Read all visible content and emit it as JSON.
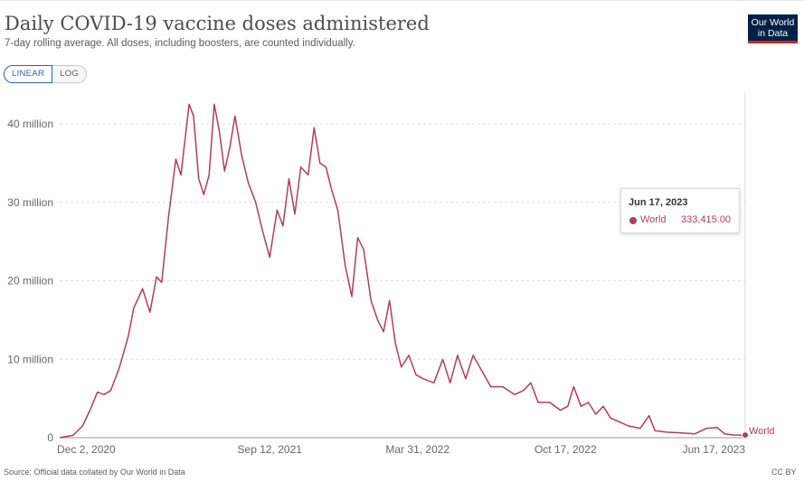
{
  "header": {
    "title": "Daily COVID-19 vaccine doses administered",
    "subtitle": "7-day rolling average. All doses, including boosters, are counted individually."
  },
  "logo": {
    "line1": "Our World",
    "line2": "in Data"
  },
  "scale_toggle": {
    "linear_label": "LINEAR",
    "log_label": "LOG",
    "selected": "LINEAR"
  },
  "tooltip": {
    "date": "Jun 17, 2023",
    "series_name": "World",
    "value": "333,415.00"
  },
  "footer": {
    "source": "Source: Official data collated by Our World in Data",
    "license": "CC BY"
  },
  "colors": {
    "series": "#b13d5a",
    "logo_bg": "#002147",
    "logo_underline": "#ce261e",
    "toggle_active": "#3360a9"
  },
  "chart_data": {
    "type": "line",
    "title": "Daily COVID-19 vaccine doses administered",
    "subtitle": "7-day rolling average. All doses, including boosters, are counted individually.",
    "x_ticks": [
      "Dec 2, 2020",
      "Sep 12, 2021",
      "Mar 31, 2022",
      "Oct 17, 2022",
      "Jun 17, 2023"
    ],
    "y_ticks": [
      "0",
      "10 million",
      "20 million",
      "30 million",
      "40 million"
    ],
    "xlim": [
      "2020-12-02",
      "2023-06-17"
    ],
    "ylim": [
      0,
      40000000
    ],
    "grid": "horizontal dashed",
    "series": [
      {
        "name": "World",
        "end_label": "World",
        "points": [
          [
            "2020-12-02",
            0
          ],
          [
            "2020-12-20",
            300000
          ],
          [
            "2021-01-02",
            1500000
          ],
          [
            "2021-01-12",
            3500000
          ],
          [
            "2021-01-22",
            5800000
          ],
          [
            "2021-01-31",
            5500000
          ],
          [
            "2021-02-09",
            6000000
          ],
          [
            "2021-02-21",
            9000000
          ],
          [
            "2021-03-05",
            13000000
          ],
          [
            "2021-03-12",
            16500000
          ],
          [
            "2021-03-24",
            19000000
          ],
          [
            "2021-04-03",
            16000000
          ],
          [
            "2021-04-12",
            20500000
          ],
          [
            "2021-04-19",
            19800000
          ],
          [
            "2021-04-28",
            28000000
          ],
          [
            "2021-05-08",
            35500000
          ],
          [
            "2021-05-15",
            33500000
          ],
          [
            "2021-05-26",
            42500000
          ],
          [
            "2021-06-01",
            41000000
          ],
          [
            "2021-06-08",
            33000000
          ],
          [
            "2021-06-15",
            31000000
          ],
          [
            "2021-06-22",
            33500000
          ],
          [
            "2021-06-29",
            42500000
          ],
          [
            "2021-07-06",
            39000000
          ],
          [
            "2021-07-13",
            34000000
          ],
          [
            "2021-07-20",
            37000000
          ],
          [
            "2021-07-27",
            41000000
          ],
          [
            "2021-08-05",
            36000000
          ],
          [
            "2021-08-14",
            32500000
          ],
          [
            "2021-08-24",
            30000000
          ],
          [
            "2021-09-02",
            26500000
          ],
          [
            "2021-09-12",
            23000000
          ],
          [
            "2021-09-22",
            29000000
          ],
          [
            "2021-09-30",
            27000000
          ],
          [
            "2021-10-08",
            33000000
          ],
          [
            "2021-10-16",
            28500000
          ],
          [
            "2021-10-24",
            34500000
          ],
          [
            "2021-11-03",
            33500000
          ],
          [
            "2021-11-11",
            39500000
          ],
          [
            "2021-11-19",
            35000000
          ],
          [
            "2021-11-27",
            34500000
          ],
          [
            "2021-12-05",
            31500000
          ],
          [
            "2021-12-13",
            29000000
          ],
          [
            "2021-12-23",
            22000000
          ],
          [
            "2022-01-01",
            18000000
          ],
          [
            "2022-01-09",
            25500000
          ],
          [
            "2022-01-17",
            24000000
          ],
          [
            "2022-01-27",
            17500000
          ],
          [
            "2022-02-05",
            15000000
          ],
          [
            "2022-02-13",
            13500000
          ],
          [
            "2022-02-21",
            17500000
          ],
          [
            "2022-03-01",
            12000000
          ],
          [
            "2022-03-09",
            9000000
          ],
          [
            "2022-03-19",
            10500000
          ],
          [
            "2022-03-29",
            8000000
          ],
          [
            "2022-04-08",
            7500000
          ],
          [
            "2022-04-22",
            7000000
          ],
          [
            "2022-05-04",
            10000000
          ],
          [
            "2022-05-14",
            7000000
          ],
          [
            "2022-05-24",
            10500000
          ],
          [
            "2022-06-04",
            7500000
          ],
          [
            "2022-06-14",
            10500000
          ],
          [
            "2022-06-26",
            8500000
          ],
          [
            "2022-07-08",
            6500000
          ],
          [
            "2022-07-24",
            6500000
          ],
          [
            "2022-08-09",
            5500000
          ],
          [
            "2022-08-21",
            6000000
          ],
          [
            "2022-08-31",
            7000000
          ],
          [
            "2022-09-10",
            4500000
          ],
          [
            "2022-09-26",
            4500000
          ],
          [
            "2022-10-10",
            3500000
          ],
          [
            "2022-10-20",
            4000000
          ],
          [
            "2022-10-28",
            6500000
          ],
          [
            "2022-11-07",
            4000000
          ],
          [
            "2022-11-17",
            4500000
          ],
          [
            "2022-11-27",
            3000000
          ],
          [
            "2022-12-07",
            4000000
          ],
          [
            "2022-12-17",
            2500000
          ],
          [
            "2022-12-29",
            2000000
          ],
          [
            "2023-01-10",
            1500000
          ],
          [
            "2023-01-26",
            1200000
          ],
          [
            "2023-02-07",
            2800000
          ],
          [
            "2023-02-15",
            900000
          ],
          [
            "2023-03-03",
            700000
          ],
          [
            "2023-03-23",
            600000
          ],
          [
            "2023-04-10",
            500000
          ],
          [
            "2023-04-26",
            1200000
          ],
          [
            "2023-05-10",
            1300000
          ],
          [
            "2023-05-20",
            500000
          ],
          [
            "2023-06-01",
            350000
          ],
          [
            "2023-06-17",
            333415
          ]
        ]
      }
    ]
  }
}
